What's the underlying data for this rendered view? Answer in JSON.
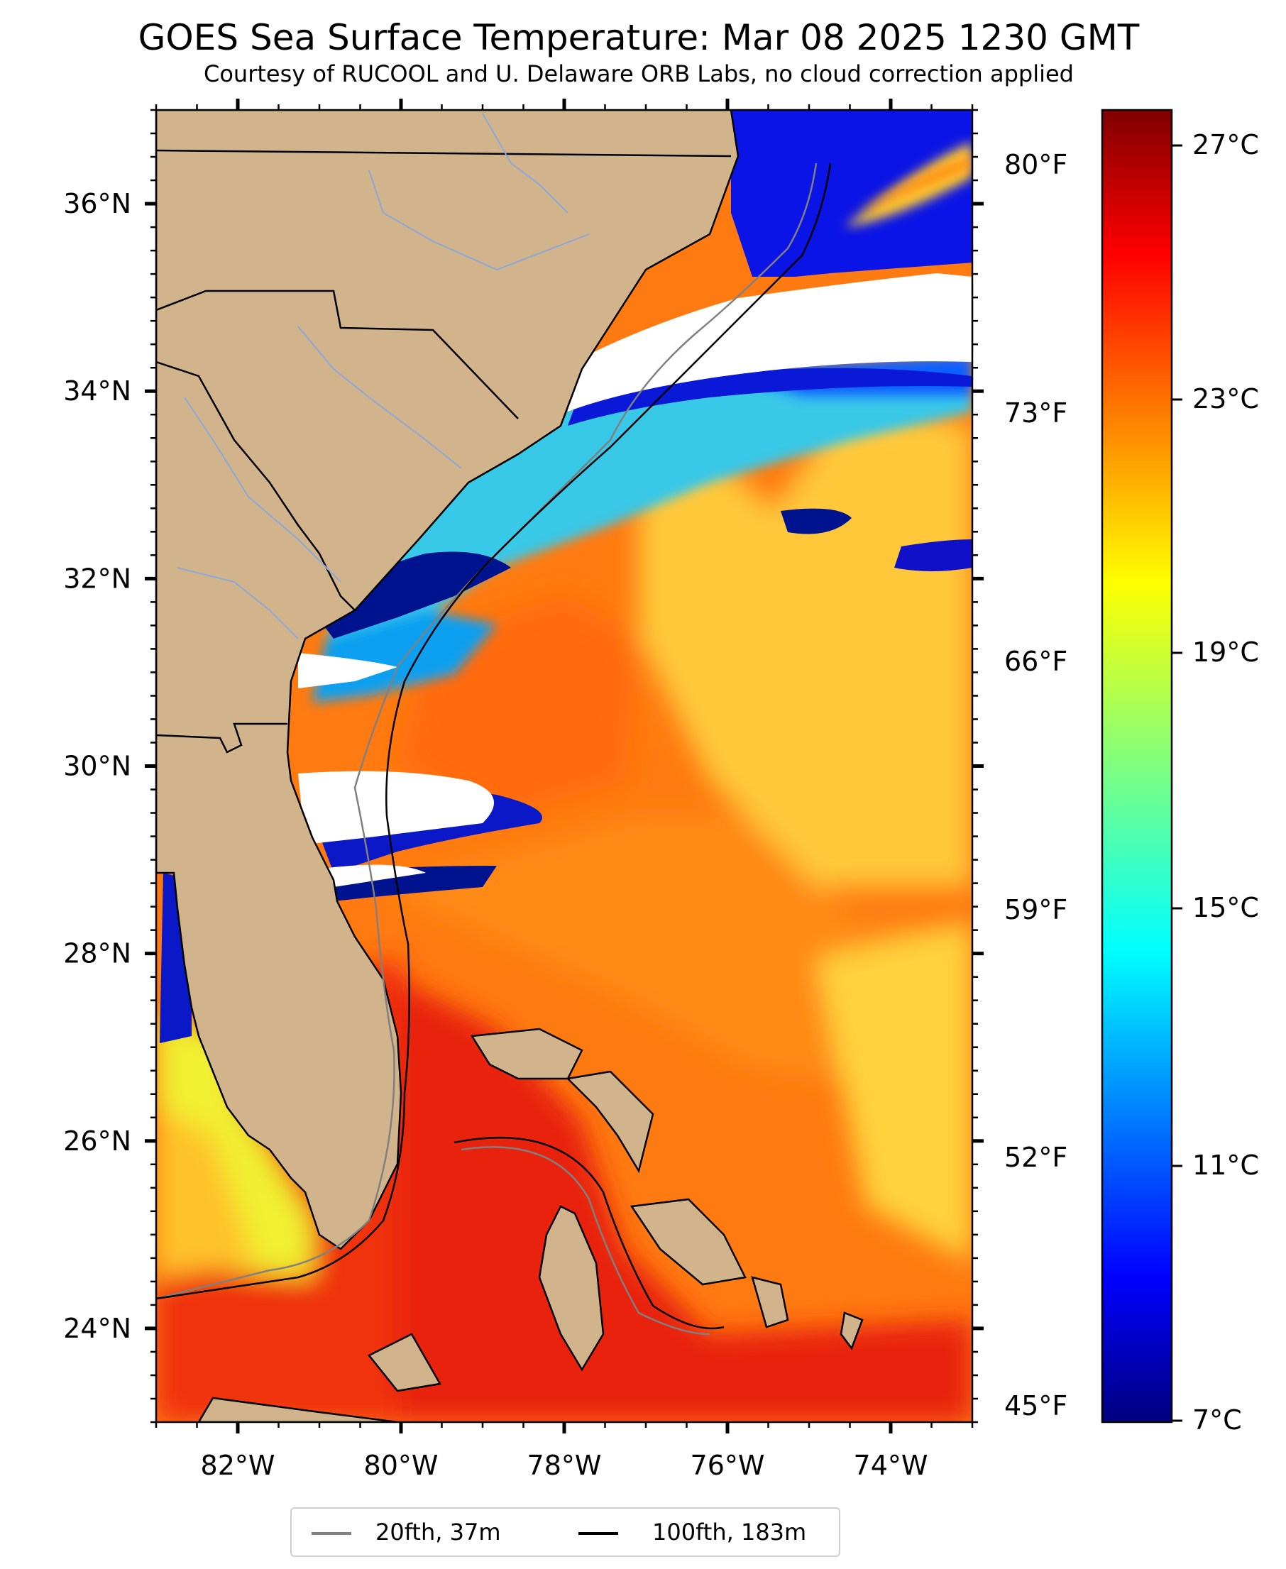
{
  "title": "GOES Sea Surface Temperature: Mar 08 2025 1230 GMT",
  "subtitle": "Courtesy of RUCOOL and U. Delaware ORB Labs, no cloud correction applied",
  "map": {
    "lon_range": [
      -83,
      -73
    ],
    "lat_range": [
      23,
      37
    ],
    "lon_labels": [
      "82°W",
      "80°W",
      "78°W",
      "76°W",
      "74°W"
    ],
    "lat_labels": [
      "36°N",
      "34°N",
      "32°N",
      "30°N",
      "28°N",
      "26°N",
      "24°N"
    ],
    "fahrenheit_labels": [
      "80°F",
      "73°F",
      "66°F",
      "59°F",
      "52°F",
      "45°F"
    ],
    "colors": {
      "land": "#d2b48c",
      "no_data": "#ffffff",
      "shelf_20fth": "#808080",
      "shelf_100fth": "#000000"
    }
  },
  "colorbar": {
    "colormap": "jet",
    "range_c": [
      6.8,
      27.6
    ],
    "celsius_labels": [
      "27°C",
      "23°C",
      "19°C",
      "15°C",
      "11°C",
      "7°C"
    ]
  },
  "legend": {
    "items": [
      {
        "label": "20fth, 37m",
        "color": "#808080"
      },
      {
        "label": "100fth, 183m",
        "color": "#000000"
      }
    ]
  }
}
